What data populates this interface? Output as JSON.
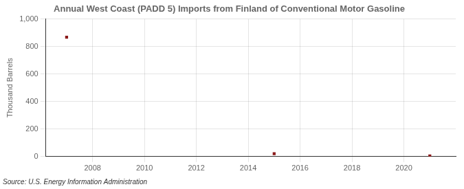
{
  "chart_data": {
    "type": "scatter",
    "title": "Annual West Coast (PADD 5) Imports from Finland of Conventional Motor Gasoline",
    "ylabel": "Thousand Barrels",
    "source": "Source: U.S. Energy Information Administration",
    "x": [
      2007,
      2015,
      2021
    ],
    "values": [
      868,
      21,
      5
    ],
    "color": "#8b1a1a",
    "marker": "square",
    "xlim": [
      2006.2,
      2022.0
    ],
    "xticks": [
      2008,
      2010,
      2012,
      2014,
      2016,
      2018,
      2020
    ],
    "ylim": [
      0,
      1000
    ],
    "yticks": [
      0,
      200,
      400,
      600,
      800,
      {
        "value": 1000,
        "label": "1,000"
      }
    ],
    "grid": true
  }
}
